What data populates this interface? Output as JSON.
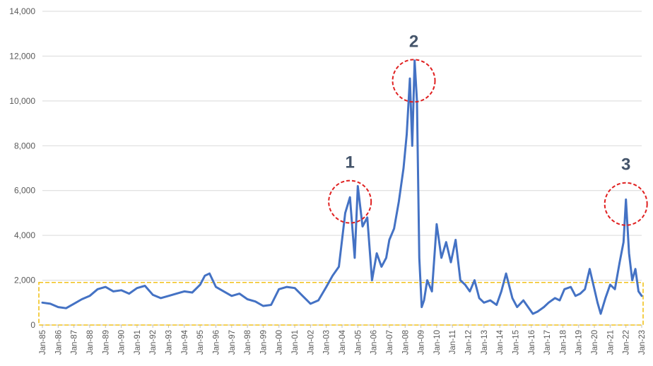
{
  "chart_data": {
    "type": "line",
    "title": "",
    "xlabel": "",
    "ylabel": "",
    "ylim": [
      0,
      14000
    ],
    "yticks": [
      0,
      2000,
      4000,
      6000,
      8000,
      10000,
      12000,
      14000
    ],
    "ytick_labels": [
      "0",
      "2,000",
      "4,000",
      "6,000",
      "8,000",
      "10,000",
      "12,000",
      "14,000"
    ],
    "x_tick_labels": [
      "Jan-85",
      "Jan-86",
      "Jan-87",
      "Jan-88",
      "Jan-89",
      "Jan-90",
      "Jan-91",
      "Jan-92",
      "Jan-93",
      "Jan-94",
      "Jan-95",
      "Jan-96",
      "Jan-97",
      "Jan-98",
      "Jan-99",
      "Jan-00",
      "Jan-01",
      "Jan-02",
      "Jan-03",
      "Jan-04",
      "Jan-05",
      "Jan-06",
      "Jan-07",
      "Jan-08",
      "Jan-09",
      "Jan-10",
      "Jan-11",
      "Jan-12",
      "Jan-13",
      "Jan-14",
      "Jan-15",
      "Jan-16",
      "Jan-17",
      "Jan-18",
      "Jan-19",
      "Jan-20",
      "Jan-21",
      "Jan-22",
      "Jan-23"
    ],
    "grid": "horizontal",
    "legend": "none",
    "line_color": "#4472c4",
    "series": [
      {
        "x": [
          1985.0,
          1985.5,
          1986.0,
          1986.5,
          1987.0,
          1987.5,
          1988.0,
          1988.5,
          1989.0,
          1989.5,
          1990.0,
          1990.5,
          1991.0,
          1991.5,
          1992.0,
          1992.5,
          1993.0,
          1993.5,
          1994.0,
          1994.5,
          1995.0,
          1995.3,
          1995.6,
          1996.0,
          1996.5,
          1997.0,
          1997.5,
          1998.0,
          1998.5,
          1999.0,
          1999.5,
          2000.0,
          2000.5,
          2001.0,
          2001.5,
          2002.0,
          2002.5,
          2003.0,
          2003.4,
          2003.8,
          2004.2,
          2004.5,
          2004.8,
          2005.0,
          2005.3,
          2005.6,
          2005.9,
          2006.2,
          2006.5,
          2006.8,
          2007.0,
          2007.3,
          2007.6,
          2007.9,
          2008.1,
          2008.3,
          2008.45,
          2008.6,
          2008.75,
          2008.9,
          2009.05,
          2009.2,
          2009.4,
          2009.7,
          2010.0,
          2010.3,
          2010.6,
          2010.9,
          2011.2,
          2011.5,
          2011.8,
          2012.1,
          2012.4,
          2012.7,
          2013.0,
          2013.4,
          2013.8,
          2014.1,
          2014.4,
          2014.8,
          2015.1,
          2015.5,
          2015.8,
          2016.1,
          2016.4,
          2016.8,
          2017.1,
          2017.5,
          2017.8,
          2018.1,
          2018.5,
          2018.8,
          2019.1,
          2019.4,
          2019.7,
          2020.0,
          2020.2,
          2020.4,
          2020.7,
          2021.0,
          2021.3,
          2021.6,
          2021.85,
          2022.0,
          2022.2,
          2022.4,
          2022.6,
          2022.8,
          2023.0
        ],
        "values": [
          1000,
          950,
          800,
          750,
          950,
          1150,
          1300,
          1600,
          1700,
          1500,
          1550,
          1400,
          1650,
          1750,
          1350,
          1200,
          1300,
          1400,
          1500,
          1450,
          1800,
          2200,
          2300,
          1700,
          1500,
          1300,
          1400,
          1150,
          1050,
          850,
          900,
          1600,
          1700,
          1650,
          1300,
          950,
          1100,
          1700,
          2200,
          2600,
          5000,
          5700,
          3000,
          6200,
          4400,
          4800,
          2000,
          3200,
          2600,
          3000,
          3800,
          4300,
          5500,
          7000,
          8500,
          11000,
          8000,
          11800,
          10000,
          3000,
          800,
          1100,
          2000,
          1500,
          4500,
          3000,
          3700,
          2800,
          3800,
          2000,
          1800,
          1500,
          2000,
          1200,
          1000,
          1100,
          900,
          1500,
          2300,
          1200,
          800,
          1100,
          800,
          500,
          600,
          800,
          1000,
          1200,
          1100,
          1600,
          1700,
          1300,
          1400,
          1600,
          2500,
          1600,
          1000,
          500,
          1200,
          1800,
          1600,
          2800,
          3700,
          5600,
          3200,
          2000,
          2500,
          1500,
          1300
        ]
      }
    ],
    "annotations": [
      {
        "label": "1",
        "x": 2004.5,
        "y": 5500
      },
      {
        "label": "2",
        "x": 2008.55,
        "y": 10900
      },
      {
        "label": "3",
        "x": 2022.0,
        "y": 5400
      }
    ],
    "highlight_band": {
      "y_from": 0,
      "y_to": 1900
    }
  }
}
